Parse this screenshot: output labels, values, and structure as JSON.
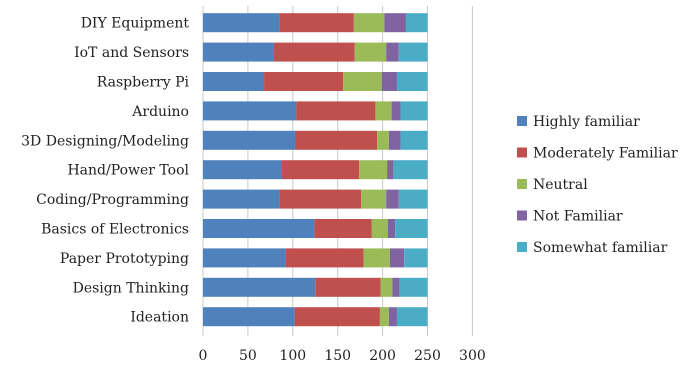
{
  "chart_data": {
    "type": "bar",
    "orientation": "horizontal",
    "stacked": true,
    "categories": [
      "DIY Equipment",
      "IoT and Sensors",
      "Raspberry Pi",
      "Arduino",
      "3D Designing/Modeling",
      "Hand/Power Tool",
      "Coding/Programming",
      "Basics of Electronics",
      "Paper Prototyping",
      "Design Thinking",
      "Ideation"
    ],
    "series": [
      {
        "name": "Highly familiar",
        "color": "#4f81bd",
        "values": [
          85,
          79,
          68,
          104,
          103,
          88,
          85,
          124,
          92,
          125,
          102
        ]
      },
      {
        "name": "Moderately Familiar",
        "color": "#c0504d",
        "values": [
          83,
          90,
          88,
          88,
          91,
          86,
          91,
          64,
          87,
          73,
          95
        ]
      },
      {
        "name": "Neutral",
        "color": "#9bbb59",
        "values": [
          34,
          35,
          43,
          18,
          13,
          31,
          28,
          18,
          29,
          13,
          10
        ]
      },
      {
        "name": "Not Familiar",
        "color": "#8064a2",
        "values": [
          24,
          14,
          17,
          10,
          13,
          7,
          14,
          8,
          16,
          8,
          9
        ]
      },
      {
        "name": "Somewhat familiar",
        "color": "#4bacc6",
        "values": [
          24,
          32,
          34,
          30,
          30,
          38,
          32,
          36,
          26,
          31,
          34
        ]
      }
    ],
    "xlim": [
      0,
      300
    ],
    "xticks": [
      "0",
      "50",
      "100",
      "150",
      "200",
      "250",
      "300"
    ],
    "grid": "vertical major gridlines",
    "legend_position": "right"
  }
}
